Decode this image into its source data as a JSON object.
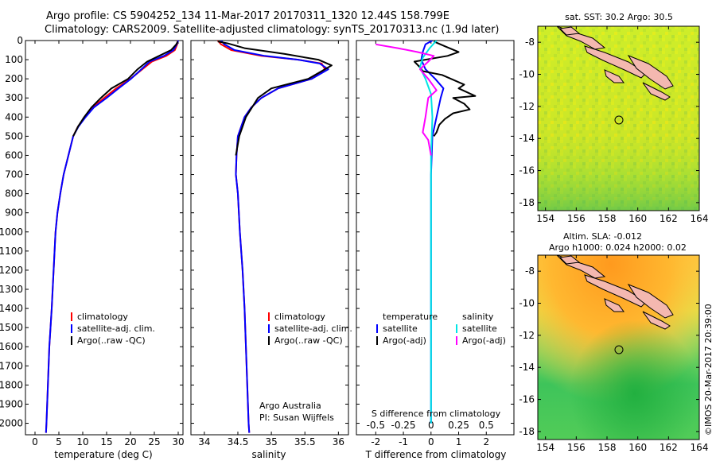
{
  "header": {
    "line1": "Argo profile: CS 5904252_134 11-Mar-2017 20170311_1320 12.44S 158.799E",
    "line2": "Climatology: CARS2009. Satellite-adjusted climatology: synTS_20170313.nc (1.9d later)"
  },
  "colors": {
    "climatology": "#ff0000",
    "satellite": "#0000ff",
    "argo": "#000000",
    "salinity_satellite": "#00e5e5",
    "salinity_argo": "#ff00ff"
  },
  "depth_ticks": [
    "0",
    "100",
    "200",
    "300",
    "400",
    "500",
    "600",
    "700",
    "800",
    "900",
    "1000",
    "1100",
    "1200",
    "1300",
    "1400",
    "1500",
    "1600",
    "1700",
    "1800",
    "1900",
    "2000"
  ],
  "chart_data": [
    {
      "type": "line",
      "name": "temperature",
      "xlabel": "temperature (deg C)",
      "ylabel": "pressure",
      "xlim": [
        -2,
        31
      ],
      "ylim": [
        2060,
        0
      ],
      "x_ticks": [
        "0",
        "5",
        "10",
        "15",
        "20",
        "25",
        "30"
      ],
      "x_tick_values": [
        0,
        5,
        10,
        15,
        20,
        25,
        30
      ],
      "legend": [
        "climatology",
        "satellite-adj. clim.",
        "Argo(..raw -QC)"
      ],
      "series": [
        {
          "name": "climatology",
          "color": "red",
          "points": [
            [
              29.9,
              0
            ],
            [
              29.8,
              20
            ],
            [
              29.3,
              50
            ],
            [
              27.5,
              80
            ],
            [
              24.5,
              110
            ],
            [
              22.5,
              150
            ],
            [
              20.0,
              200
            ],
            [
              17.0,
              250
            ],
            [
              14.5,
              300
            ],
            [
              12.0,
              350
            ],
            [
              10.5,
              400
            ],
            [
              9.0,
              450
            ],
            [
              8.0,
              500
            ],
            [
              7.0,
              600
            ],
            [
              6.0,
              700
            ],
            [
              5.3,
              800
            ],
            [
              4.7,
              900
            ],
            [
              4.3,
              1000
            ],
            [
              3.9,
              1200
            ],
            [
              3.5,
              1400
            ],
            [
              3.0,
              1600
            ],
            [
              2.7,
              1800
            ],
            [
              2.4,
              2000
            ],
            [
              2.3,
              2050
            ]
          ]
        },
        {
          "name": "satellite-adj. clim.",
          "color": "blue",
          "points": [
            [
              30.0,
              0
            ],
            [
              29.7,
              20
            ],
            [
              29.0,
              50
            ],
            [
              27.0,
              80
            ],
            [
              24.0,
              110
            ],
            [
              22.3,
              150
            ],
            [
              20.1,
              200
            ],
            [
              17.5,
              250
            ],
            [
              15.0,
              300
            ],
            [
              12.3,
              350
            ],
            [
              10.6,
              400
            ],
            [
              9.1,
              450
            ],
            [
              8.0,
              500
            ],
            [
              7.0,
              600
            ],
            [
              6.0,
              700
            ],
            [
              5.3,
              800
            ],
            [
              4.7,
              900
            ],
            [
              4.3,
              1000
            ],
            [
              3.9,
              1200
            ],
            [
              3.5,
              1400
            ],
            [
              3.0,
              1600
            ],
            [
              2.7,
              1800
            ],
            [
              2.4,
              2000
            ],
            [
              2.3,
              2050
            ]
          ]
        },
        {
          "name": "Argo(..raw -QC)",
          "color": "black",
          "points": [
            [
              29.9,
              5
            ],
            [
              29.6,
              20
            ],
            [
              28.5,
              50
            ],
            [
              26.0,
              80
            ],
            [
              23.5,
              110
            ],
            [
              21.5,
              150
            ],
            [
              19.5,
              200
            ],
            [
              16.0,
              250
            ],
            [
              13.8,
              300
            ],
            [
              11.8,
              350
            ],
            [
              10.3,
              400
            ],
            [
              9.0,
              450
            ],
            [
              8.0,
              500
            ]
          ]
        }
      ]
    },
    {
      "type": "line",
      "name": "salinity",
      "xlabel": "salinity",
      "ylabel": "pressure",
      "xlim": [
        33.8,
        36.15
      ],
      "ylim": [
        2060,
        0
      ],
      "x_ticks": [
        "34",
        "34.5",
        "35",
        "35.5",
        "36"
      ],
      "x_tick_values": [
        34,
        34.5,
        35,
        35.5,
        36
      ],
      "legend": [
        "climatology",
        "satellite-adj. clim.",
        "Argo(..raw -QC)"
      ],
      "annotation": [
        "Argo Australia",
        "PI: Susan Wijffels"
      ],
      "series": [
        {
          "name": "climatology",
          "color": "red",
          "points": [
            [
              34.2,
              0
            ],
            [
              34.25,
              20
            ],
            [
              34.4,
              50
            ],
            [
              34.85,
              80
            ],
            [
              35.4,
              100
            ],
            [
              35.75,
              120
            ],
            [
              35.8,
              150
            ],
            [
              35.6,
              200
            ],
            [
              35.1,
              250
            ],
            [
              34.85,
              300
            ],
            [
              34.7,
              350
            ],
            [
              34.6,
              400
            ],
            [
              34.55,
              450
            ],
            [
              34.5,
              500
            ],
            [
              34.48,
              600
            ],
            [
              34.47,
              700
            ],
            [
              34.5,
              800
            ],
            [
              34.53,
              1000
            ],
            [
              34.57,
              1200
            ],
            [
              34.6,
              1400
            ],
            [
              34.62,
              1600
            ],
            [
              34.64,
              1800
            ],
            [
              34.66,
              2000
            ],
            [
              34.67,
              2050
            ]
          ]
        },
        {
          "name": "satellite-adj. clim.",
          "color": "blue",
          "points": [
            [
              34.25,
              0
            ],
            [
              34.3,
              20
            ],
            [
              34.45,
              50
            ],
            [
              34.9,
              80
            ],
            [
              35.4,
              100
            ],
            [
              35.72,
              120
            ],
            [
              35.85,
              150
            ],
            [
              35.6,
              200
            ],
            [
              35.1,
              250
            ],
            [
              34.85,
              300
            ],
            [
              34.7,
              350
            ],
            [
              34.6,
              400
            ],
            [
              34.55,
              450
            ],
            [
              34.5,
              500
            ],
            [
              34.48,
              600
            ],
            [
              34.47,
              700
            ],
            [
              34.5,
              800
            ],
            [
              34.53,
              1000
            ],
            [
              34.57,
              1200
            ],
            [
              34.6,
              1400
            ],
            [
              34.62,
              1600
            ],
            [
              34.64,
              1800
            ],
            [
              34.66,
              2000
            ],
            [
              34.67,
              2050
            ]
          ]
        },
        {
          "name": "Argo(..raw -QC)",
          "color": "black",
          "points": [
            [
              34.2,
              5
            ],
            [
              34.35,
              15
            ],
            [
              34.6,
              40
            ],
            [
              35.2,
              70
            ],
            [
              35.7,
              100
            ],
            [
              35.9,
              130
            ],
            [
              35.8,
              150
            ],
            [
              35.55,
              200
            ],
            [
              35.0,
              250
            ],
            [
              34.8,
              300
            ],
            [
              34.62,
              400
            ],
            [
              34.52,
              500
            ],
            [
              34.47,
              600
            ]
          ]
        }
      ]
    },
    {
      "type": "line",
      "name": "difference",
      "xlabel": "T difference from climatology",
      "xlabel_top": "S difference from climatology",
      "ylabel": "pressure",
      "xlim": [
        -2.7,
        3
      ],
      "ylim": [
        2060,
        0
      ],
      "x_ticks": [
        "-2",
        "-1",
        "0",
        "1",
        "2"
      ],
      "x_tick_values": [
        -2,
        -1,
        0,
        1,
        2
      ],
      "s_ticks": [
        "-0.5",
        "-0.25",
        "0",
        "0.25",
        "0.5"
      ],
      "s_tick_values": [
        -2,
        -1,
        0,
        1,
        2
      ],
      "legend_headers": [
        "temperature",
        "salinity"
      ],
      "legend": [
        "satellite",
        "Argo(-adj)",
        "satellite",
        "Argo(-adj)"
      ],
      "series": [
        {
          "name": "temperature satellite",
          "color": "blue",
          "points": [
            [
              0.05,
              0
            ],
            [
              -0.2,
              20
            ],
            [
              -0.3,
              60
            ],
            [
              -0.35,
              100
            ],
            [
              -0.2,
              150
            ],
            [
              0.15,
              200
            ],
            [
              0.45,
              250
            ],
            [
              0.35,
              300
            ],
            [
              0.2,
              400
            ],
            [
              0.05,
              500
            ],
            [
              0.0,
              700
            ],
            [
              0.0,
              1000
            ],
            [
              0.0,
              1500
            ],
            [
              0.0,
              2000
            ]
          ]
        },
        {
          "name": "temperature Argo(-adj)",
          "color": "black",
          "points": [
            [
              0.1,
              5
            ],
            [
              0.5,
              30
            ],
            [
              1.0,
              60
            ],
            [
              0.6,
              80
            ],
            [
              -0.6,
              110
            ],
            [
              -0.4,
              140
            ],
            [
              -0.3,
              160
            ],
            [
              0.4,
              180
            ],
            [
              1.2,
              230
            ],
            [
              1.0,
              250
            ],
            [
              1.6,
              290
            ],
            [
              0.8,
              300
            ],
            [
              1.2,
              330
            ],
            [
              1.4,
              360
            ],
            [
              0.8,
              380
            ],
            [
              0.5,
              410
            ],
            [
              0.3,
              440
            ],
            [
              0.2,
              480
            ],
            [
              0.1,
              500
            ]
          ]
        },
        {
          "name": "salinity satellite",
          "color": "cyan",
          "points": [
            [
              0.2,
              0
            ],
            [
              -0.05,
              40
            ],
            [
              -0.3,
              90
            ],
            [
              -0.4,
              140
            ],
            [
              -0.2,
              200
            ],
            [
              0.0,
              280
            ],
            [
              0.05,
              400
            ],
            [
              0.0,
              600
            ],
            [
              0.0,
              1000
            ],
            [
              0.0,
              2000
            ]
          ]
        },
        {
          "name": "salinity Argo(-adj)",
          "color": "magenta",
          "points": [
            [
              -2.0,
              20
            ],
            [
              -1.2,
              40
            ],
            [
              -0.5,
              60
            ],
            [
              0.1,
              80
            ],
            [
              -0.1,
              110
            ],
            [
              -0.4,
              150
            ],
            [
              -0.1,
              200
            ],
            [
              0.2,
              260
            ],
            [
              -0.1,
              300
            ],
            [
              -0.2,
              400
            ],
            [
              -0.3,
              480
            ],
            [
              -0.1,
              520
            ],
            [
              0.0,
              600
            ]
          ]
        }
      ]
    },
    {
      "type": "heatmap",
      "name": "sst-map",
      "title": "sat. SST: 30.2 Argo: 30.5",
      "x_ticks": [
        "154",
        "156",
        "158",
        "160",
        "162",
        "164"
      ],
      "y_ticks": [
        "-8",
        "-10",
        "-12",
        "-14",
        "-16",
        "-18"
      ],
      "xlim": [
        153.5,
        164
      ],
      "ylim": [
        -18.5,
        -7
      ],
      "argo_position": [
        158.799,
        -12.44
      ]
    },
    {
      "type": "heatmap",
      "name": "sla-map",
      "title_line1": "Altim. SLA: -0.012",
      "title_line2": "Argo h1000: 0.024 h2000: 0.02",
      "x_ticks": [
        "154",
        "156",
        "158",
        "160",
        "162",
        "164"
      ],
      "y_ticks": [
        "-8",
        "-10",
        "-12",
        "-14",
        "-16",
        "-18"
      ],
      "xlim": [
        153.5,
        164
      ],
      "ylim": [
        -18.5,
        -7
      ],
      "argo_position": [
        158.799,
        -12.44
      ]
    }
  ],
  "footer": "©IMOS 20-Mar-2017 20:39:00"
}
